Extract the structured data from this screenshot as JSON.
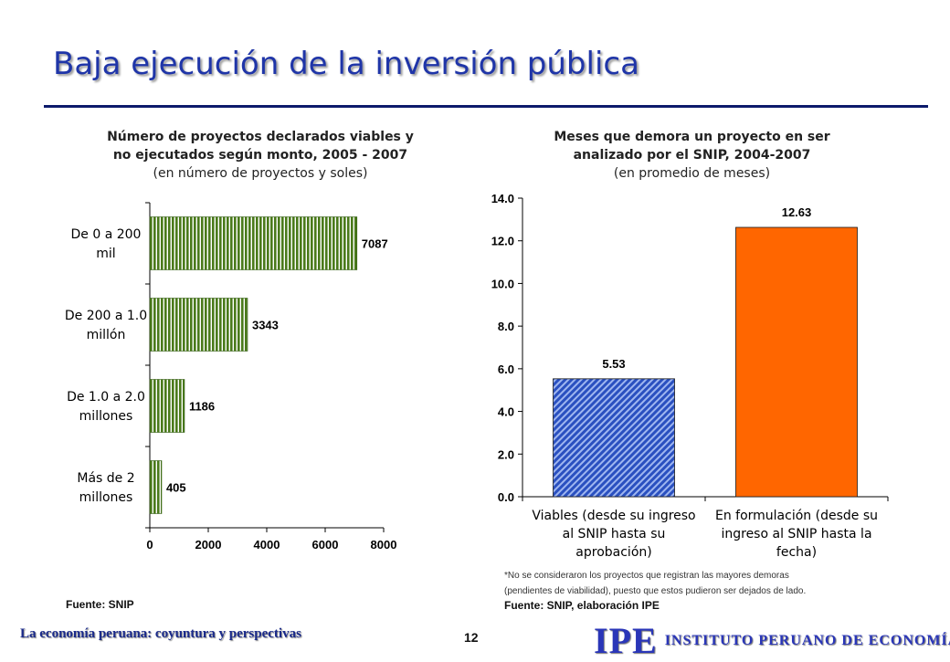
{
  "slide": {
    "title": "Baja ejecución de la inversión pública",
    "footer_text": "La economía peruana: coyuntura y perspectivas",
    "page_number": "12",
    "logo_mark": "IPE",
    "logo_text": "INSTITUTO PERUANO DE ECONOMÍA"
  },
  "left": {
    "title_line1": "Número de proyectos declarados viables y",
    "title_line2": "no ejecutados según monto, 2005 - 2007",
    "subtitle": "(en número de proyectos y soles)",
    "source": "Fuente: SNIP"
  },
  "right": {
    "title_line1": "Meses que demora un proyecto en ser",
    "title_line2": "analizado por el SNIP, 2004-2007",
    "subtitle": "(en promedio de meses)",
    "note_line1": "*No se consideraron los proyectos que registran las mayores demoras",
    "note_line2": "(pendientes de viabilidad), puesto que estos pudieron ser dejados de lado.",
    "source": "Fuente: SNIP, elaboración IPE"
  },
  "chart_data": [
    {
      "type": "bar",
      "orientation": "horizontal",
      "title": "Número de proyectos declarados viables y no ejecutados según monto, 2005 - 2007",
      "subtitle": "(en número de proyectos y soles)",
      "categories": [
        [
          "De 0 a 200",
          "mil"
        ],
        [
          "De 200 a 1.0",
          "millón"
        ],
        [
          "De 1.0 a 2.0",
          "millones"
        ],
        [
          "Más de 2",
          "millones"
        ]
      ],
      "values": [
        7087,
        3343,
        1186,
        405
      ],
      "data_labels": [
        "7087",
        "3343",
        "1186",
        "405"
      ],
      "xlim": [
        0,
        8000
      ],
      "x_ticks": [
        "0",
        "2000",
        "4000",
        "6000",
        "8000"
      ],
      "grid": false,
      "bar_color": "#4a7a1a"
    },
    {
      "type": "bar",
      "orientation": "vertical",
      "title": "Meses que demora un proyecto en ser analizado por el SNIP, 2004-2007",
      "subtitle": "(en promedio de meses)",
      "categories": [
        [
          "Viables (desde su ingreso",
          "al SNIP hasta su",
          "aprobación)"
        ],
        [
          "En formulación (desde su",
          "ingreso al SNIP hasta la",
          "fecha)"
        ]
      ],
      "values": [
        5.53,
        12.63
      ],
      "data_labels": [
        "5.53",
        "12.63"
      ],
      "ylim": [
        0,
        14
      ],
      "y_ticks": [
        "0.0",
        "2.0",
        "4.0",
        "6.0",
        "8.0",
        "10.0",
        "12.0",
        "14.0"
      ],
      "grid": false,
      "bar_colors": [
        "#2a50c0",
        "#ff6600"
      ]
    }
  ]
}
